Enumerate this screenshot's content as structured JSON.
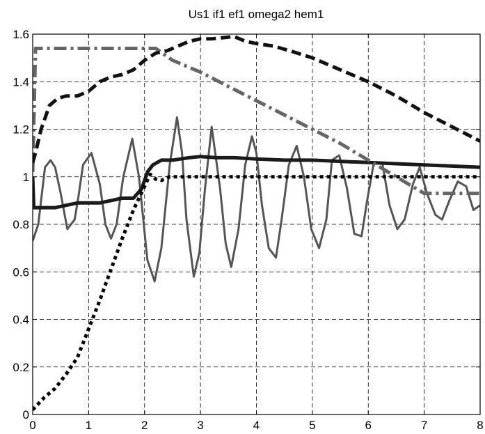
{
  "chart_data": {
    "type": "line",
    "title": "Us1 if1 ef1 omega2 hem1",
    "xlabel": "",
    "ylabel": "",
    "xlim": [
      0,
      8
    ],
    "ylim": [
      0,
      1.6
    ],
    "xticks": [
      "0",
      "1",
      "2",
      "3",
      "4",
      "5",
      "6",
      "7",
      "8"
    ],
    "yticks": [
      "0",
      "0.2",
      "0.4",
      "0.6",
      "0.8",
      "1",
      "1.2",
      "1.4",
      "1.6"
    ],
    "grid": true,
    "legend": "none",
    "series": [
      {
        "style": "solid-thin",
        "color": "#555555",
        "x": [
          0,
          0.1,
          0.22,
          0.32,
          0.4,
          0.5,
          0.62,
          0.75,
          0.82,
          0.9,
          1.05,
          1.2,
          1.3,
          1.4,
          1.5,
          1.62,
          1.78,
          1.9,
          2.05,
          2.18,
          2.3,
          2.45,
          2.58,
          2.67,
          2.75,
          2.88,
          2.98,
          3.08,
          3.2,
          3.35,
          3.45,
          3.55,
          3.68,
          3.8,
          3.92,
          4.0,
          4.1,
          4.22,
          4.35,
          4.45,
          4.58,
          4.72,
          4.85,
          4.98,
          5.12,
          5.25,
          5.35,
          5.48,
          5.62,
          5.75,
          5.88,
          5.98,
          6.1,
          6.25,
          6.38,
          6.52,
          6.65,
          6.8,
          6.92,
          7.05,
          7.2,
          7.32,
          7.45,
          7.6,
          7.75,
          7.88,
          8.0
        ],
        "y": [
          0.73,
          0.8,
          1.04,
          1.07,
          1.04,
          0.93,
          0.78,
          0.82,
          0.92,
          1.05,
          1.1,
          0.97,
          0.8,
          0.74,
          0.8,
          1.0,
          1.16,
          1.0,
          0.65,
          0.56,
          0.7,
          1.05,
          1.25,
          1.1,
          0.82,
          0.58,
          0.68,
          0.95,
          1.21,
          0.95,
          0.72,
          0.62,
          0.78,
          1.05,
          1.17,
          1.1,
          0.88,
          0.7,
          0.66,
          0.82,
          1.05,
          1.13,
          1.0,
          0.78,
          0.7,
          0.82,
          1.07,
          1.09,
          0.95,
          0.76,
          0.75,
          0.9,
          1.06,
          1.06,
          0.88,
          0.78,
          0.82,
          0.97,
          1.04,
          0.93,
          0.84,
          0.82,
          0.9,
          0.98,
          0.96,
          0.86,
          0.88
        ]
      },
      {
        "style": "solid-thick",
        "color": "#1a1a1a",
        "x": [
          0,
          0.02,
          0.2,
          0.4,
          0.6,
          0.8,
          1.0,
          1.2,
          1.4,
          1.6,
          1.8,
          1.95,
          2.05,
          2.15,
          2.3,
          2.5,
          2.8,
          3.0,
          3.3,
          3.6,
          4.0,
          4.5,
          5.0,
          5.5,
          6.0,
          6.5,
          7.0,
          7.5,
          8.0
        ],
        "y": [
          1.0,
          0.87,
          0.87,
          0.87,
          0.88,
          0.89,
          0.89,
          0.89,
          0.9,
          0.91,
          0.91,
          0.95,
          1.02,
          1.05,
          1.07,
          1.07,
          1.08,
          1.085,
          1.08,
          1.08,
          1.075,
          1.07,
          1.07,
          1.065,
          1.06,
          1.055,
          1.05,
          1.045,
          1.04
        ]
      },
      {
        "style": "dotted",
        "color": "#000000",
        "x": [
          0,
          0.2,
          0.4,
          0.6,
          0.8,
          1.0,
          1.2,
          1.4,
          1.6,
          1.8,
          2.0,
          2.1,
          2.2,
          2.3,
          2.45,
          3.0,
          4.0,
          5.0,
          6.0,
          7.0,
          8.0
        ],
        "y": [
          0.02,
          0.07,
          0.11,
          0.17,
          0.24,
          0.36,
          0.48,
          0.61,
          0.74,
          0.86,
          0.96,
          1.01,
          0.99,
          0.985,
          1.0,
          1.0,
          1.0,
          1.0,
          1.0,
          1.0,
          1.0
        ]
      },
      {
        "style": "dash-dot",
        "color": "#666666",
        "x": [
          0,
          0.05,
          0.1,
          2.0,
          2.2,
          2.5,
          3.0,
          3.5,
          4.0,
          4.5,
          5.0,
          5.5,
          6.0,
          6.5,
          7.0,
          7.5,
          8.0
        ],
        "y": [
          1.02,
          1.54,
          1.54,
          1.54,
          1.54,
          1.49,
          1.44,
          1.38,
          1.32,
          1.26,
          1.2,
          1.14,
          1.07,
          1.0,
          0.93,
          0.93,
          0.93
        ]
      },
      {
        "style": "dashed-thick",
        "color": "#111111",
        "x": [
          0,
          0.05,
          0.15,
          0.3,
          0.45,
          0.6,
          0.8,
          1.0,
          1.2,
          1.4,
          1.6,
          1.8,
          2.0,
          2.2,
          2.4,
          2.6,
          2.8,
          3.0,
          3.2,
          3.4,
          3.6,
          3.8,
          4.0,
          4.3,
          4.6,
          5.0,
          5.5,
          6.0,
          6.5,
          7.0,
          7.5,
          8.0
        ],
        "y": [
          1.06,
          1.1,
          1.2,
          1.3,
          1.33,
          1.34,
          1.34,
          1.36,
          1.4,
          1.42,
          1.43,
          1.45,
          1.49,
          1.52,
          1.53,
          1.55,
          1.57,
          1.58,
          1.58,
          1.585,
          1.59,
          1.57,
          1.56,
          1.55,
          1.53,
          1.5,
          1.45,
          1.4,
          1.34,
          1.27,
          1.21,
          1.15
        ]
      }
    ]
  }
}
